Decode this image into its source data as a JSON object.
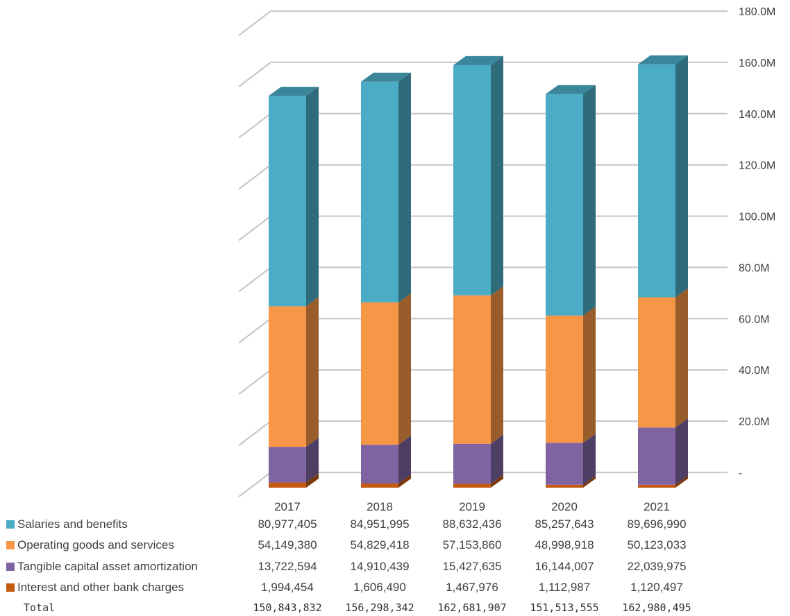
{
  "chart_data": {
    "type": "bar",
    "stacked": true,
    "three_d": true,
    "categories": [
      "2017",
      "2018",
      "2019",
      "2020",
      "2021"
    ],
    "series": [
      {
        "name": "Interest and other bank charges",
        "color": "#c55a11",
        "values": [
          1994454,
          1606490,
          1467976,
          1112987,
          1120497
        ]
      },
      {
        "name": "Tangible capital asset amortization",
        "color": "#8064a2",
        "values": [
          13722594,
          14910439,
          15427635,
          16144007,
          22039975
        ]
      },
      {
        "name": "Operating goods and services",
        "color": "#f79646",
        "values": [
          54149380,
          54829418,
          57153860,
          48998918,
          50123033
        ]
      },
      {
        "name": "Salaries and benefits",
        "color": "#4bacc6",
        "values": [
          80977405,
          84951995,
          88632436,
          85257643,
          89696990
        ]
      }
    ],
    "table": {
      "rows": [
        {
          "label": "Salaries and benefits",
          "color": "#4bacc6",
          "values": [
            "80,977,405",
            "84,951,995",
            "88,632,436",
            "85,257,643",
            "89,696,990"
          ]
        },
        {
          "label": "Operating goods and services",
          "color": "#f79646",
          "values": [
            "54,149,380",
            "54,829,418",
            "57,153,860",
            "48,998,918",
            "50,123,033"
          ]
        },
        {
          "label": "Tangible capital asset amortization",
          "color": "#8064a2",
          "values": [
            "13,722,594",
            "14,910,439",
            "15,427,635",
            "16,144,007",
            "22,039,975"
          ]
        },
        {
          "label": "Interest and other bank charges",
          "color": "#c55a11",
          "values": [
            "1,994,454",
            "1,606,490",
            "1,467,976",
            "1,112,987",
            "1,120,497"
          ]
        }
      ],
      "total_label": "Total",
      "totals": [
        "150,843,832",
        "156,298,342",
        "162,681,907",
        "151,513,555",
        "162,980,495"
      ]
    },
    "y_axis": {
      "position": "right",
      "ylim": [
        0,
        180000000
      ],
      "ticks": [
        0,
        20000000,
        40000000,
        60000000,
        80000000,
        100000000,
        120000000,
        140000000,
        160000000,
        180000000
      ],
      "tick_labels": [
        "-",
        "20.0M",
        "40.0M",
        "60.0M",
        "80.0M",
        "100.0M",
        "120.0M",
        "140.0M",
        "160.0M",
        "180.0M"
      ]
    },
    "grid": true,
    "legend": "table-below"
  }
}
